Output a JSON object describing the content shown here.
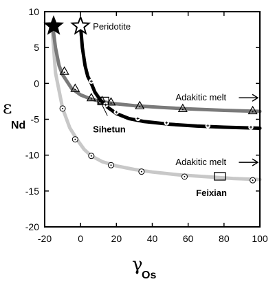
{
  "chart_data": {
    "type": "line",
    "title": "",
    "xlabel": {
      "symbol": "γ",
      "subscript": "Os"
    },
    "ylabel": {
      "symbol": "ε",
      "subscript": "Nd"
    },
    "xlim": [
      -20,
      100
    ],
    "ylim": [
      -20,
      10
    ],
    "xticks": [
      -20,
      0,
      20,
      40,
      60,
      80,
      100
    ],
    "yticks": [
      -20,
      -15,
      -10,
      -5,
      0,
      5,
      10
    ],
    "grid": false,
    "colors": {
      "light": "#c8c8c8",
      "medium": "#7a7a7a",
      "dark": "#000000",
      "marker_stroke": "#000000",
      "marker_fill": "#ffffff"
    },
    "series": [
      {
        "style": "light-gray",
        "curve": [
          [
            -16,
            8
          ],
          [
            -15,
            5
          ],
          [
            -14,
            1.5
          ],
          [
            -12,
            -1
          ],
          [
            -10,
            -3.5
          ],
          [
            -6,
            -6.2
          ],
          [
            -2,
            -7.8
          ],
          [
            2,
            -9.2
          ],
          [
            6,
            -10.1
          ],
          [
            12,
            -10.9
          ],
          [
            20,
            -11.5
          ],
          [
            30,
            -12
          ],
          [
            40,
            -12.35
          ],
          [
            55,
            -12.75
          ],
          [
            70,
            -13
          ],
          [
            85,
            -13.25
          ],
          [
            100,
            -13.4
          ]
        ],
        "markers": {
          "shape": "circle-dot",
          "points": [
            [
              -10,
              -3.5
            ],
            [
              -3,
              -7.8
            ],
            [
              6,
              -10.1
            ],
            [
              17,
              -11.4
            ],
            [
              34,
              -12.3
            ],
            [
              58,
              -13
            ],
            [
              96,
              -13.5
            ]
          ]
        }
      },
      {
        "style": "medium-gray",
        "curve": [
          [
            -15.5,
            8
          ],
          [
            -14,
            5
          ],
          [
            -12,
            2.5
          ],
          [
            -10,
            1.2
          ],
          [
            -5,
            -0.7
          ],
          [
            0,
            -1.6
          ],
          [
            5,
            -2.1
          ],
          [
            10,
            -2.45
          ],
          [
            18,
            -2.8
          ],
          [
            30,
            -3.1
          ],
          [
            45,
            -3.35
          ],
          [
            60,
            -3.55
          ],
          [
            80,
            -3.75
          ],
          [
            100,
            -3.9
          ]
        ],
        "markers": {
          "shape": "triangle-dot",
          "points": [
            [
              -9,
              1.7
            ],
            [
              -3,
              -0.7
            ],
            [
              6,
              -2
            ],
            [
              12,
              -2.4
            ],
            [
              17,
              -2.6
            ],
            [
              33,
              -3.1
            ],
            [
              57,
              -3.5
            ],
            [
              96,
              -3.8
            ]
          ]
        }
      },
      {
        "style": "black",
        "curve": [
          [
            0,
            8
          ],
          [
            1,
            5
          ],
          [
            2.5,
            2.5
          ],
          [
            4,
            1
          ],
          [
            6,
            0
          ],
          [
            8,
            -1.2
          ],
          [
            11,
            -2.3
          ],
          [
            15,
            -3.3
          ],
          [
            20,
            -4.2
          ],
          [
            27,
            -4.9
          ],
          [
            35,
            -5.3
          ],
          [
            50,
            -5.7
          ],
          [
            65,
            -5.95
          ],
          [
            80,
            -6.1
          ],
          [
            100,
            -6.25
          ]
        ],
        "markers": {
          "shape": "circle-plus",
          "points": [
            [
              6,
              0.3
            ],
            [
              14,
              -3
            ],
            [
              20,
              -4
            ],
            [
              32,
              -4.9
            ],
            [
              48,
              -5.5
            ],
            [
              71,
              -5.9
            ],
            [
              95,
              -6.1
            ]
          ]
        }
      }
    ],
    "stars": [
      {
        "name": "",
        "x": -15,
        "y": 8,
        "filled": true
      },
      {
        "name": "Peridotite",
        "x": 0,
        "y": 8,
        "filled": false
      }
    ],
    "sample_boxes": [
      {
        "name": "Sihetun",
        "x": 10,
        "y": -2.5
      },
      {
        "name": "Feixian",
        "x": 75,
        "y": -13
      }
    ],
    "annotations": [
      {
        "text": "Adakitic melt",
        "x": 53,
        "y": -2,
        "arrow_to": [
          100,
          -2
        ]
      },
      {
        "text": "Adakitic melt",
        "x": 53,
        "y": -11,
        "arrow_to": [
          100,
          -11
        ]
      }
    ],
    "leader_lines": [
      {
        "from": [
          12,
          -3
        ],
        "to": [
          15,
          -4.5
        ]
      }
    ]
  }
}
